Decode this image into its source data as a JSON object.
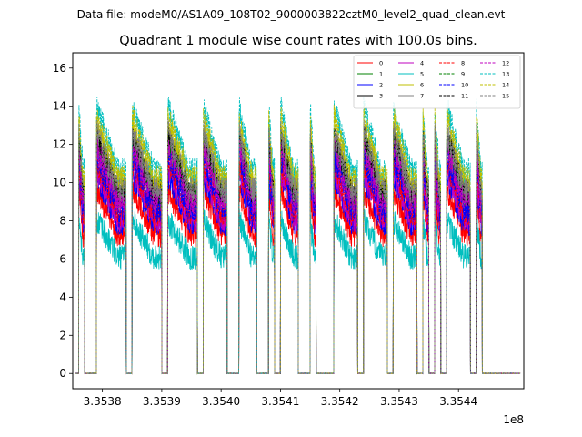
{
  "suptitle": "Data file: modeM0/AS1A09_108T02_9000003822cztM0_level2_quad_clean.evt",
  "chart_data": {
    "type": "line",
    "title": "Quadrant 1 module wise count rates with 100.0s bins.",
    "xlabel": "",
    "ylabel": "",
    "x_offset_label": "1e8",
    "xlim": [
      3.35375,
      3.35451
    ],
    "ylim": [
      -0.8,
      16.8
    ],
    "x_ticks": [
      3.3538,
      3.3539,
      3.354,
      3.3541,
      3.3542,
      3.3543,
      3.3544
    ],
    "x_tick_labels": [
      "3.3538",
      "3.3539",
      "3.3540",
      "3.3541",
      "3.3542",
      "3.3543",
      "3.3544"
    ],
    "y_ticks": [
      0,
      2,
      4,
      6,
      8,
      10,
      12,
      14,
      16
    ],
    "y_tick_labels": [
      "0",
      "2",
      "4",
      "6",
      "8",
      "10",
      "12",
      "14",
      "16"
    ],
    "grid": false,
    "legend_position": "top-right",
    "legend_columns": 4,
    "on_segments": [
      [
        3.35376,
        3.35377
      ],
      [
        3.35379,
        3.35384
      ],
      [
        3.35385,
        3.3539
      ],
      [
        3.35391,
        3.35396
      ],
      [
        3.35397,
        3.35401
      ],
      [
        3.35403,
        3.35406
      ],
      [
        3.35408,
        3.35409
      ],
      [
        3.3541,
        3.35413
      ],
      [
        3.35415,
        3.35416
      ],
      [
        3.35419,
        3.35423
      ],
      [
        3.35424,
        3.35428
      ],
      [
        3.35429,
        3.35433
      ],
      [
        3.35434,
        3.35435
      ],
      [
        3.35436,
        3.35437
      ],
      [
        3.35438,
        3.35442
      ],
      [
        3.35443,
        3.35444
      ]
    ],
    "series": [
      {
        "name": "0",
        "color": "#ff0000",
        "dash": "solid",
        "level": 7.3
      },
      {
        "name": "1",
        "color": "#008000",
        "dash": "solid",
        "level": 9.4
      },
      {
        "name": "2",
        "color": "#0000ff",
        "dash": "solid",
        "level": 7.9
      },
      {
        "name": "3",
        "color": "#000000",
        "dash": "solid",
        "level": 9.0
      },
      {
        "name": "4",
        "color": "#bf00bf",
        "dash": "solid",
        "level": 8.1
      },
      {
        "name": "5",
        "color": "#00bfbf",
        "dash": "solid",
        "level": 6.1
      },
      {
        "name": "6",
        "color": "#bfbf00",
        "dash": "solid",
        "level": 9.7
      },
      {
        "name": "7",
        "color": "#808080",
        "dash": "solid",
        "level": 9.1
      },
      {
        "name": "8",
        "color": "#ff0000",
        "dash": "dashed",
        "level": 8.4
      },
      {
        "name": "9",
        "color": "#008000",
        "dash": "dashed",
        "level": 9.3
      },
      {
        "name": "10",
        "color": "#0000ff",
        "dash": "dashed",
        "level": 8.6
      },
      {
        "name": "11",
        "color": "#000000",
        "dash": "dashed",
        "level": 9.5
      },
      {
        "name": "12",
        "color": "#bf00bf",
        "dash": "dashed",
        "level": 9.0
      },
      {
        "name": "13",
        "color": "#00bfbf",
        "dash": "dashed",
        "level": 10.6
      },
      {
        "name": "14",
        "color": "#bfbf00",
        "dash": "dashed",
        "level": 10.2
      },
      {
        "name": "15",
        "color": "#808080",
        "dash": "dashed",
        "level": 9.6
      }
    ]
  }
}
